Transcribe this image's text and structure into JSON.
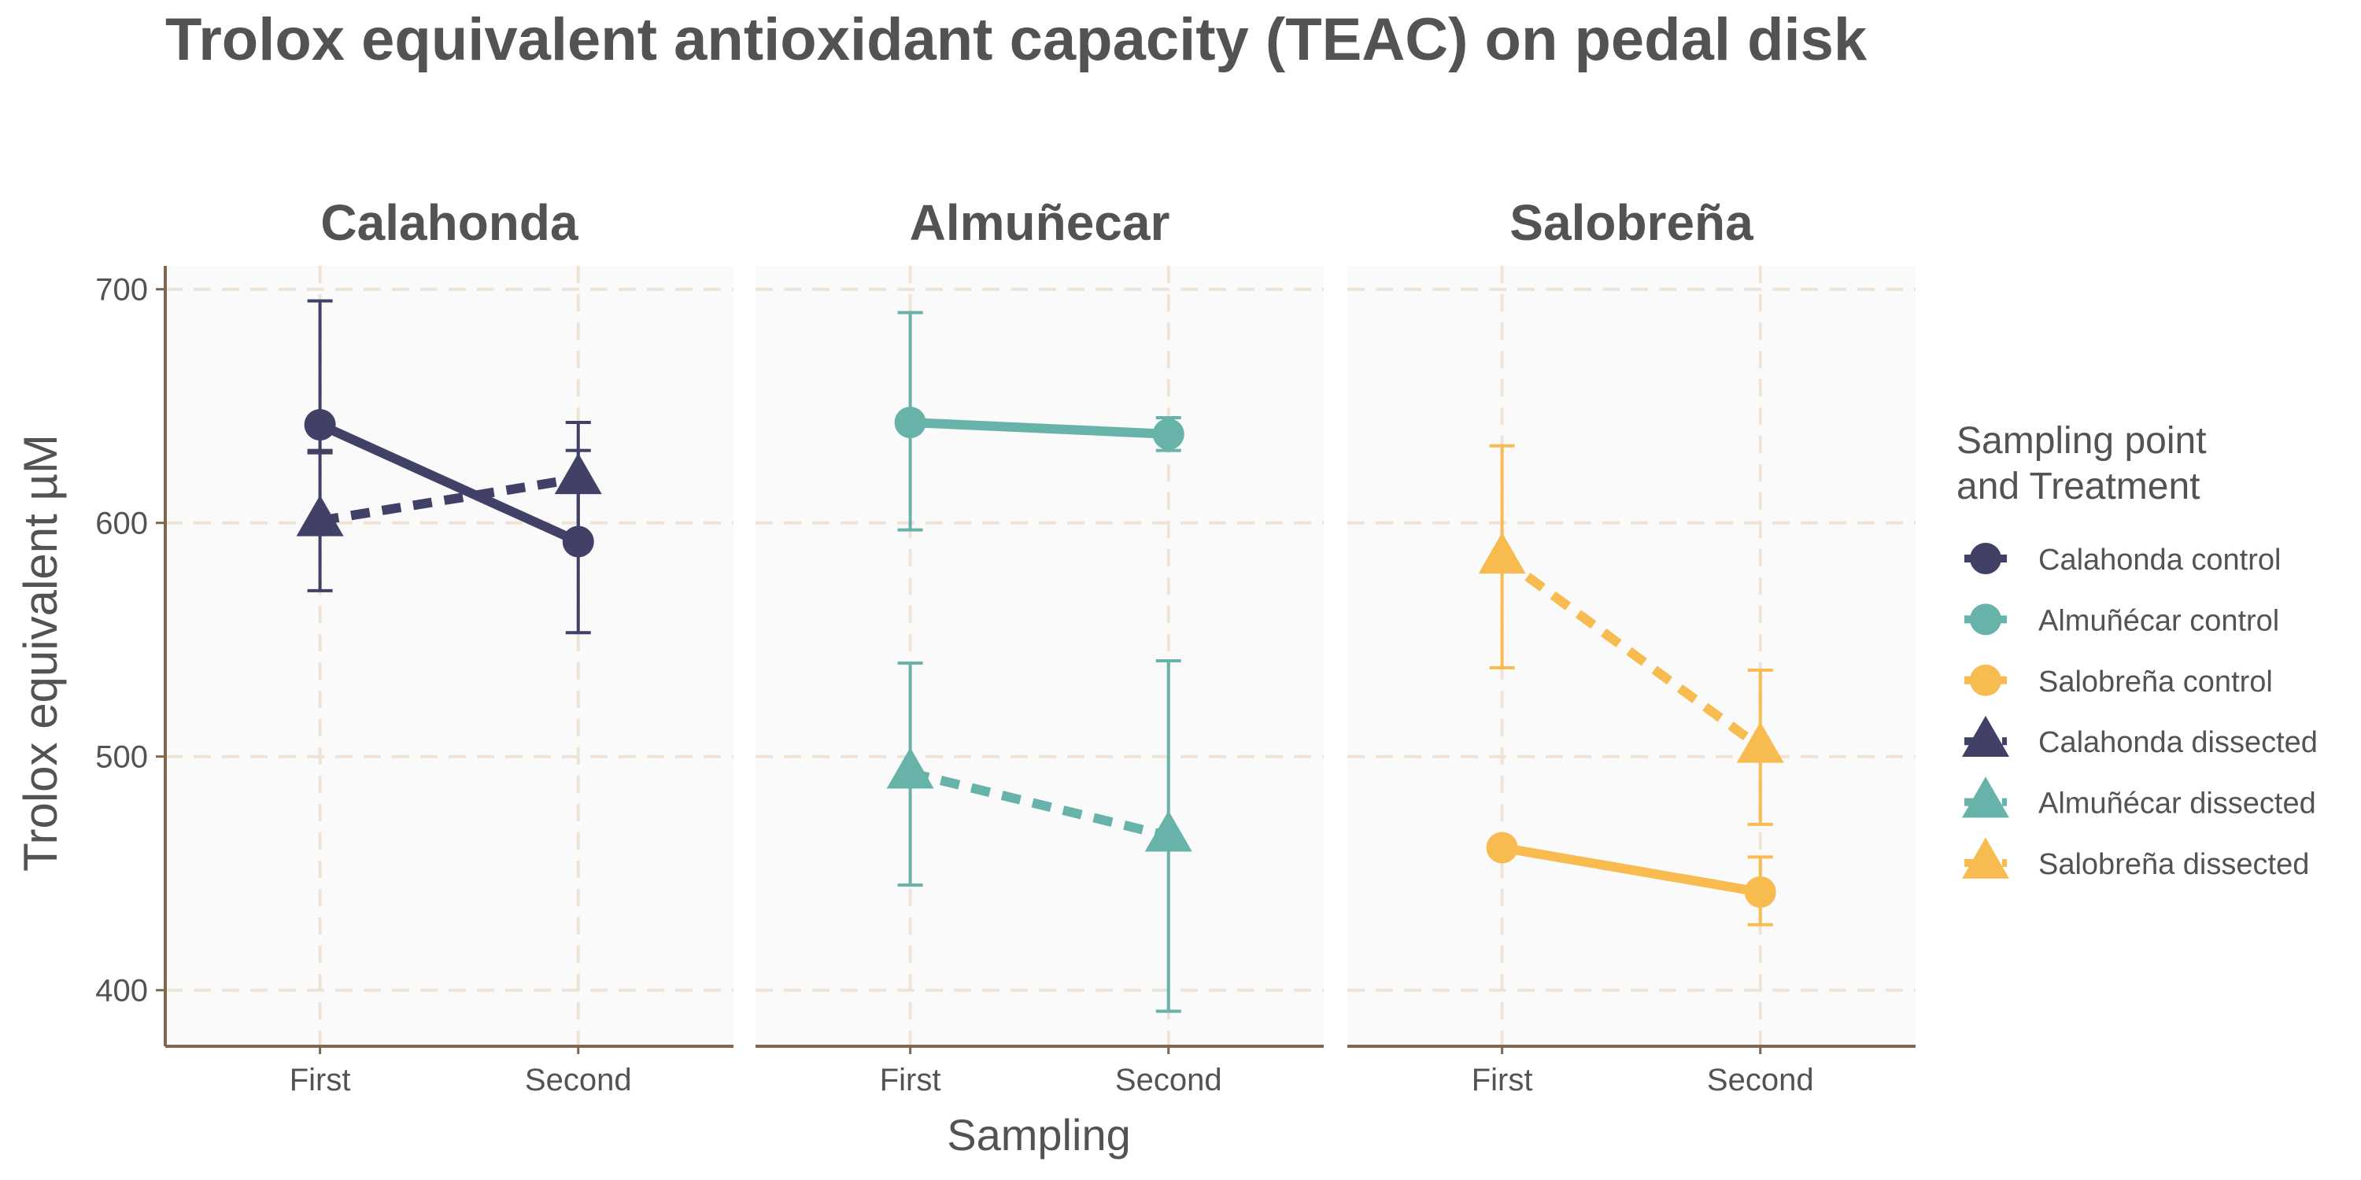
{
  "chart_data": {
    "type": "line",
    "title": "Trolox equivalent antioxidant capacity (TEAC) on pedal disk",
    "xlabel": "Sampling",
    "ylabel": "Trolox equivalent µM",
    "categories": [
      "First",
      "Second"
    ],
    "ylim": [
      376,
      710
    ],
    "yticks": [
      400,
      500,
      600,
      700
    ],
    "grid": true,
    "legend_position": "right",
    "legend_title": [
      "Sampling point",
      " and Treatment"
    ],
    "legend": [
      {
        "label": "Calahonda control",
        "color": "#414066",
        "shape": "circle",
        "linetype": "solid"
      },
      {
        "label": "Almuñécar control",
        "color": "#68B3A9",
        "shape": "circle",
        "linetype": "solid"
      },
      {
        "label": "Salobreña control",
        "color": "#F8BB4F",
        "shape": "circle",
        "linetype": "solid"
      },
      {
        "label": "Calahonda dissected",
        "color": "#414066",
        "shape": "triangle",
        "linetype": "dashed"
      },
      {
        "label": "Almuñécar dissected",
        "color": "#68B3A9",
        "shape": "triangle",
        "linetype": "dashed"
      },
      {
        "label": "Salobreña dissected",
        "color": "#F8BB4F",
        "shape": "triangle",
        "linetype": "dashed"
      }
    ],
    "facets": [
      {
        "name": "Calahonda",
        "color": "#414066",
        "series": [
          {
            "name": "Calahonda control",
            "shape": "circle",
            "linetype": "solid",
            "values": [
              642,
              592
            ],
            "err_low": [
              630,
              553
            ],
            "err_high": [
              695,
              631
            ]
          },
          {
            "name": "Calahonda dissected",
            "shape": "triangle",
            "linetype": "dashed",
            "values": [
              601,
              619
            ],
            "err_low": [
              571,
              595
            ],
            "err_high": [
              631,
              643
            ]
          }
        ]
      },
      {
        "name": "Almuñecar",
        "color": "#68B3A9",
        "series": [
          {
            "name": "Almuñécar control",
            "shape": "circle",
            "linetype": "solid",
            "values": [
              643,
              638
            ],
            "err_low": [
              597,
              631
            ],
            "err_high": [
              690,
              645
            ]
          },
          {
            "name": "Almuñécar dissected",
            "shape": "triangle",
            "linetype": "dashed",
            "values": [
              493,
              466
            ],
            "err_low": [
              445,
              391
            ],
            "err_high": [
              540,
              541
            ]
          }
        ]
      },
      {
        "name": "Salobreña",
        "color": "#F8BB4F",
        "series": [
          {
            "name": "Salobreña control",
            "shape": "circle",
            "linetype": "solid",
            "values": [
              461,
              442
            ],
            "err_low": [
              459,
              428
            ],
            "err_high": [
              463,
              457
            ]
          },
          {
            "name": "Salobreña dissected",
            "shape": "triangle",
            "linetype": "dashed",
            "values": [
              585,
              504
            ],
            "err_low": [
              538,
              471
            ],
            "err_high": [
              633,
              537
            ]
          }
        ]
      }
    ]
  }
}
